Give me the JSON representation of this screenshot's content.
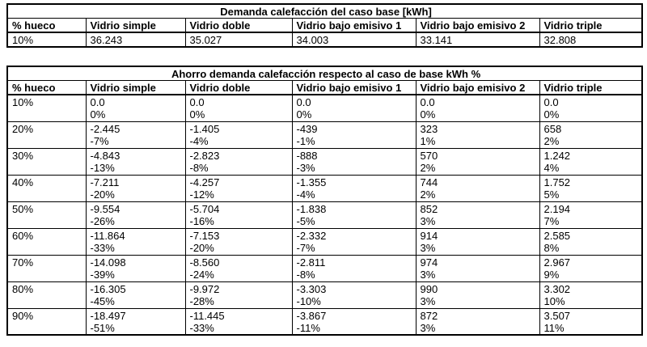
{
  "table1": {
    "title": "Demanda calefacción del caso base [kWh]",
    "headers": [
      "% hueco",
      "Vidrio simple",
      "Vidrio doble",
      "Vidrio bajo emisivo 1",
      "Vidrio bajo emisivo 2",
      "Vidrio triple"
    ],
    "rows": [
      [
        "10%",
        "36.243",
        "35.027",
        "34.003",
        "33.141",
        "32.808"
      ]
    ]
  },
  "table2": {
    "title": "Ahorro demanda calefacción respecto al caso de base kWh  %",
    "headers": [
      "% hueco",
      "Vidrio simple",
      "Vidrio doble",
      "Vidrio bajo emisivo 1",
      "Vidrio bajo emisivo 2",
      "Vidrio triple"
    ],
    "rows": [
      [
        "10%",
        [
          "0.0",
          "0%"
        ],
        [
          "0.0",
          "0%"
        ],
        [
          "0.0",
          "0%"
        ],
        [
          "0.0",
          "0%"
        ],
        [
          "0.0",
          "0%"
        ]
      ],
      [
        "20%",
        [
          "-2.445",
          "-7%"
        ],
        [
          "-1.405",
          "-4%"
        ],
        [
          "-439",
          "-1%"
        ],
        [
          "323",
          "1%"
        ],
        [
          "658",
          "2%"
        ]
      ],
      [
        "30%",
        [
          "-4.843",
          "-13%"
        ],
        [
          "-2.823",
          "-8%"
        ],
        [
          "-888",
          "-3%"
        ],
        [
          "570",
          "2%"
        ],
        [
          "1.242",
          "4%"
        ]
      ],
      [
        "40%",
        [
          "-7.211",
          "-20%"
        ],
        [
          "-4.257",
          "-12%"
        ],
        [
          "-1.355",
          "-4%"
        ],
        [
          "744",
          "2%"
        ],
        [
          "1.752",
          "5%"
        ]
      ],
      [
        "50%",
        [
          "-9.554",
          "-26%"
        ],
        [
          "-5.704",
          "-16%"
        ],
        [
          "-1.838",
          "-5%"
        ],
        [
          "852",
          "3%"
        ],
        [
          "2.194",
          "7%"
        ]
      ],
      [
        "60%",
        [
          "-11.864",
          "-33%"
        ],
        [
          "-7.153",
          "-20%"
        ],
        [
          "-2.332",
          "-7%"
        ],
        [
          "914",
          "3%"
        ],
        [
          "2.585",
          "8%"
        ]
      ],
      [
        "70%",
        [
          "-14.098",
          "-39%"
        ],
        [
          "-8.560",
          "-24%"
        ],
        [
          "-2.811",
          "-8%"
        ],
        [
          "974",
          "3%"
        ],
        [
          "2.967",
          "9%"
        ]
      ],
      [
        "80%",
        [
          "-16.305",
          "-45%"
        ],
        [
          "-9.972",
          "-28%"
        ],
        [
          "-3.303",
          "-10%"
        ],
        [
          "990",
          "3%"
        ],
        [
          "3.302",
          "10%"
        ]
      ],
      [
        "90%",
        [
          "-18.497",
          "-51%"
        ],
        [
          "-11.445",
          "-33%"
        ],
        [
          "-3.867",
          "-11%"
        ],
        [
          "872",
          "3%"
        ],
        [
          "3.507",
          "11%"
        ]
      ]
    ]
  },
  "colors": {
    "border": "#000000",
    "background": "#ffffff",
    "text": "#000000"
  }
}
